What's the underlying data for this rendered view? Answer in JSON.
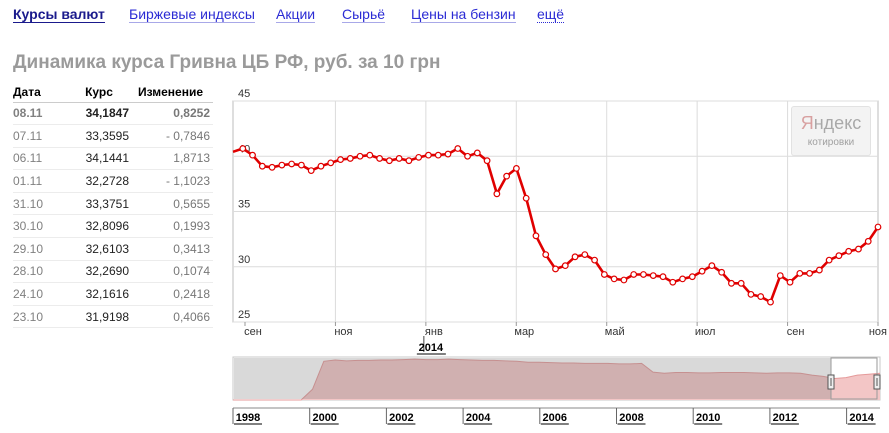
{
  "nav": {
    "items": [
      {
        "label": "Курсы валют",
        "active": true
      },
      {
        "label": "Биржевые индексы",
        "active": false
      },
      {
        "label": "Акции",
        "active": false
      },
      {
        "label": "Сырьё",
        "active": false
      },
      {
        "label": "Цены на бензин",
        "active": false
      },
      {
        "label": "ещё",
        "active": false
      }
    ]
  },
  "page": {
    "title": "Динамика курса Гривна ЦБ РФ, руб. за 10 грн"
  },
  "table": {
    "headers": [
      "Дата",
      "Курс",
      "Изменение"
    ],
    "rows": [
      [
        "08.11",
        "34,1847",
        "0,8252"
      ],
      [
        "07.11",
        "33,3595",
        "- 0,7846"
      ],
      [
        "06.11",
        "34,1441",
        "1,8713"
      ],
      [
        "01.11",
        "32,2728",
        "- 1,1023"
      ],
      [
        "31.10",
        "33,3751",
        "0,5655"
      ],
      [
        "30.10",
        "32,8096",
        "0,1993"
      ],
      [
        "29.10",
        "32,6103",
        "0,3413"
      ],
      [
        "28.10",
        "32,2690",
        "0,1074"
      ],
      [
        "24.10",
        "32,1616",
        "0,2418"
      ],
      [
        "23.10",
        "31,9198",
        "0,4066"
      ]
    ]
  },
  "badge": {
    "logo_first": "Я",
    "logo_rest": "ндекс",
    "sub": "котировки"
  },
  "colors": {
    "line": "#e00000",
    "nav_link": "#2b2bd4",
    "nav_active": "#1a1a8c",
    "overview_fill": "#f3c6c6",
    "overview_line": "#e59a9a"
  },
  "chart_data": {
    "main": {
      "type": "line",
      "ylim": [
        25,
        45
      ],
      "yticks": [
        "45",
        "40",
        "35",
        "30",
        "25"
      ],
      "xticks": [
        "сен",
        "ноя",
        "янв",
        "мар",
        "май",
        "июл",
        "сен",
        "ноя"
      ],
      "year_label": "2014",
      "grid": true,
      "series": [
        {
          "values": [
            40.4,
            40.7,
            40.1,
            39.1,
            39.0,
            39.2,
            39.3,
            39.2,
            38.7,
            39.1,
            39.4,
            39.7,
            39.8,
            40.0,
            40.1,
            39.8,
            39.6,
            39.8,
            39.6,
            39.9,
            40.1,
            40.1,
            40.2,
            40.7,
            40.0,
            40.3,
            39.6,
            36.6,
            38.2,
            38.9,
            36.2,
            32.8,
            31.1,
            29.8,
            30.1,
            30.9,
            31.1,
            30.6,
            29.3,
            28.9,
            28.8,
            29.3,
            29.3,
            29.2,
            29.1,
            28.6,
            28.9,
            29.1,
            29.6,
            30.1,
            29.5,
            28.5,
            28.5,
            27.5,
            27.3,
            26.8,
            29.2,
            28.6,
            29.4,
            29.4,
            29.7,
            30.6,
            31.0,
            31.4,
            31.6,
            32.3,
            33.6
          ]
        }
      ]
    },
    "overview": {
      "type": "area",
      "xticks": [
        "1998",
        "2000",
        "2002",
        "2004",
        "2006",
        "2008",
        "2010",
        "2012",
        "2014"
      ],
      "values": [
        0,
        0,
        0,
        0,
        0,
        0,
        0,
        0.25,
        0.9,
        0.93,
        0.91,
        0.92,
        0.92,
        0.93,
        0.93,
        0.94,
        0.95,
        0.94,
        0.94,
        0.95,
        0.94,
        0.93,
        0.92,
        0.92,
        0.91,
        0.9,
        0.88,
        0.88,
        0.87,
        0.86,
        0.86,
        0.85,
        0.85,
        0.85,
        0.84,
        0.84,
        0.85,
        0.65,
        0.62,
        0.64,
        0.64,
        0.63,
        0.63,
        0.64,
        0.64,
        0.64,
        0.63,
        0.62,
        0.63,
        0.63,
        0.62,
        0.58,
        0.55,
        0.5,
        0.52,
        0.58,
        0.6,
        0.62
      ]
    }
  }
}
